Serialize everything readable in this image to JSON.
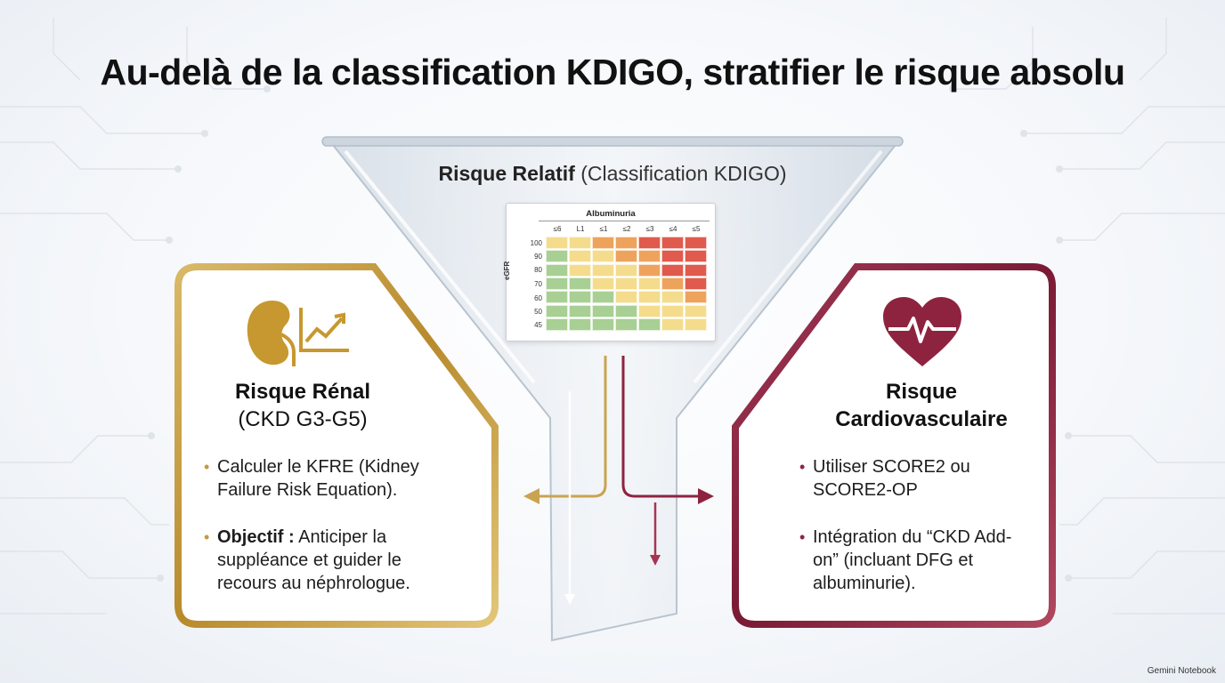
{
  "title": "Au-delà de la classification KDIGO, stratifier le risque absolu",
  "funnel": {
    "heading_bold": "Risque Relatif",
    "heading_light": "(Classification KDIGO)"
  },
  "matrix": {
    "col_title": "Albuminuria",
    "row_axis": "eGFR",
    "columns": [
      "≤6",
      "L1",
      "≤1",
      "≤2",
      "≤3",
      "≤4",
      "≤5"
    ],
    "rows": [
      "100",
      "90",
      "80",
      "70",
      "60",
      "50",
      "45"
    ],
    "cells": [
      [
        "yellow",
        "yellow",
        "orange",
        "orange",
        "red",
        "red",
        "red"
      ],
      [
        "green",
        "yellow",
        "yellow",
        "orange",
        "orange",
        "red",
        "red"
      ],
      [
        "green",
        "yellow",
        "yellow",
        "yellow",
        "orange",
        "red",
        "red"
      ],
      [
        "green",
        "green",
        "yellow",
        "yellow",
        "yellow",
        "orange",
        "red"
      ],
      [
        "green",
        "green",
        "green",
        "yellow",
        "yellow",
        "yellow",
        "orange"
      ],
      [
        "green",
        "green",
        "green",
        "green",
        "yellow",
        "yellow",
        "yellow"
      ],
      [
        "green",
        "green",
        "green",
        "green",
        "green",
        "yellow",
        "yellow"
      ]
    ],
    "colors": {
      "green": "#a8cf94",
      "yellow": "#f4dc8c",
      "orange": "#eea35c",
      "red": "#e05a4e"
    }
  },
  "renal": {
    "title": "Risque Rénal",
    "subtitle": "(CKD G3-G5)",
    "bullet1": "Calculer le KFRE (Kidney Failure Risk Equation).",
    "bullet2_bold": "Objectif :",
    "bullet2_rest": "Anticiper la suppléance et guider le recours au néphrologue.",
    "icons": [
      "kidney-icon",
      "trend-chart-icon"
    ],
    "accent": "#c49a3a"
  },
  "cardio": {
    "title_line1": "Risque",
    "title_line2": "Cardiovasculaire",
    "bullet1": "Utiliser SCORE2 ou SCORE2-OP",
    "bullet2": "Intégration du “CKD Add-on” (incluant DFG et albuminurie).",
    "icons": [
      "heart-pulse-icon"
    ],
    "accent": "#8e2340"
  },
  "footer": "Gemini Notebook"
}
